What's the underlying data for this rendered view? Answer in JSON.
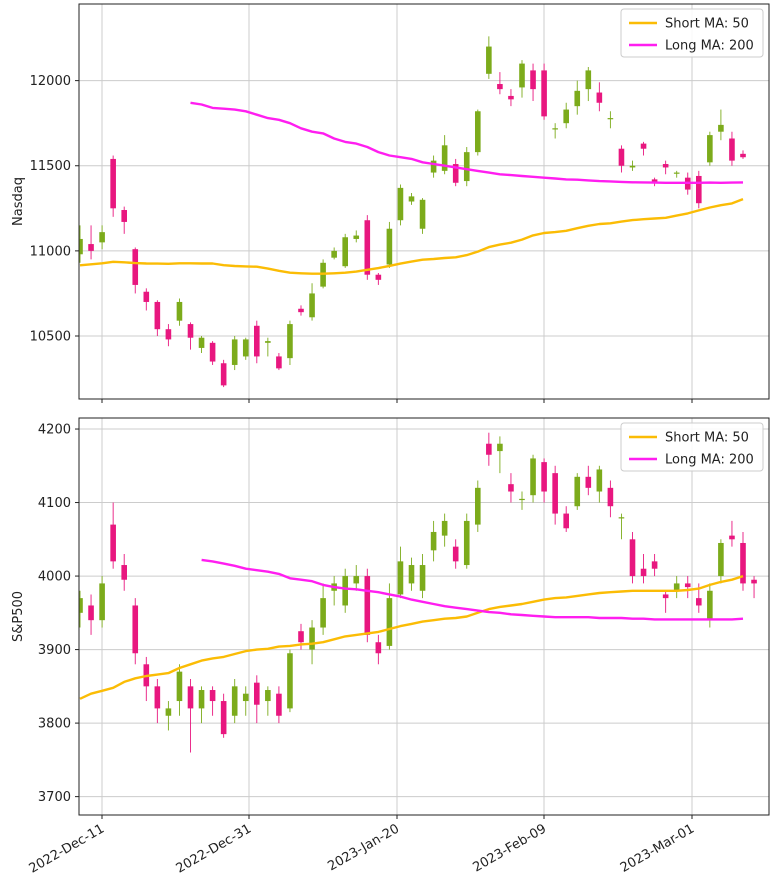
{
  "colors": {
    "up": "#7cab1b",
    "down": "#e8177f",
    "short_ma": "#fbbc05",
    "long_ma": "#ff1ef0",
    "grid": "#cccccc",
    "axis": "#222222"
  },
  "chart_data": [
    {
      "type": "candlestick",
      "ylabel": "Nasdaq",
      "ylim": [
        10130,
        12450
      ],
      "yticks": [
        10500,
        11000,
        11500,
        12000
      ],
      "grid": true,
      "legend_position": "top-right",
      "legend": [
        {
          "label": "Short MA: 50",
          "color": "short_ma"
        },
        {
          "label": "Long MA: 200",
          "color": "long_ma"
        }
      ],
      "candles": [
        [
          10980,
          11070,
          10930,
          11150
        ],
        [
          11040,
          11000,
          10950,
          11150
        ],
        [
          11050,
          11110,
          11010,
          11150
        ],
        [
          11540,
          11250,
          11200,
          11560
        ],
        [
          11240,
          11170,
          11100,
          11260
        ],
        [
          11010,
          10800,
          10750,
          11020
        ],
        [
          10760,
          10700,
          10650,
          10780
        ],
        [
          10700,
          10540,
          10500,
          10710
        ],
        [
          10540,
          10480,
          10440,
          10570
        ],
        [
          10590,
          10700,
          10560,
          10720
        ],
        [
          10570,
          10490,
          10420,
          10580
        ],
        [
          10430,
          10490,
          10400,
          10500
        ],
        [
          10460,
          10350,
          10330,
          10470
        ],
        [
          10340,
          10210,
          10200,
          10360
        ],
        [
          10330,
          10480,
          10300,
          10500
        ],
        [
          10380,
          10480,
          10360,
          10490
        ],
        [
          10560,
          10380,
          10340,
          10590
        ],
        [
          10460,
          10470,
          10380,
          10490
        ],
        [
          10380,
          10310,
          10300,
          10400
        ],
        [
          10370,
          10570,
          10330,
          10590
        ],
        [
          10660,
          10640,
          10620,
          10680
        ],
        [
          10610,
          10750,
          10590,
          10810
        ],
        [
          10790,
          10930,
          10780,
          10950
        ],
        [
          10960,
          11000,
          10950,
          11020
        ],
        [
          10910,
          11080,
          10900,
          11100
        ],
        [
          11070,
          11090,
          11050,
          11120
        ],
        [
          11180,
          10860,
          10830,
          11210
        ],
        [
          10860,
          10830,
          10800,
          10870
        ],
        [
          10920,
          11130,
          10900,
          11170
        ],
        [
          11180,
          11370,
          11150,
          11390
        ],
        [
          11290,
          11320,
          11270,
          11340
        ],
        [
          11130,
          11300,
          11100,
          11310
        ],
        [
          11460,
          11530,
          11430,
          11560
        ],
        [
          11470,
          11620,
          11450,
          11680
        ],
        [
          11510,
          11400,
          11380,
          11540
        ],
        [
          11410,
          11580,
          11380,
          11610
        ],
        [
          11580,
          11820,
          11560,
          11830
        ],
        [
          12040,
          12200,
          12010,
          12260
        ],
        [
          11980,
          11950,
          11920,
          12050
        ],
        [
          11910,
          11890,
          11850,
          11950
        ],
        [
          11960,
          12100,
          11900,
          12120
        ],
        [
          12060,
          11950,
          11880,
          12100
        ],
        [
          12060,
          11790,
          11770,
          12100
        ],
        [
          11720,
          11720,
          11660,
          11750
        ],
        [
          11750,
          11830,
          11720,
          11870
        ],
        [
          11850,
          11940,
          11800,
          12000
        ],
        [
          11950,
          12060,
          11880,
          12080
        ],
        [
          11930,
          11870,
          11820,
          11990
        ],
        [
          11780,
          11780,
          11720,
          11820
        ],
        [
          11600,
          11500,
          11460,
          11620
        ],
        [
          11490,
          11500,
          11470,
          11530
        ],
        [
          11630,
          11600,
          11560,
          11640
        ],
        [
          11420,
          11400,
          11380,
          11430
        ],
        [
          11510,
          11490,
          11450,
          11530
        ],
        [
          11460,
          11460,
          11430,
          11470
        ],
        [
          11430,
          11360,
          11330,
          11460
        ],
        [
          11440,
          11280,
          11250,
          11470
        ],
        [
          11520,
          11680,
          11500,
          11700
        ],
        [
          11700,
          11740,
          11650,
          11830
        ],
        [
          11660,
          11530,
          11500,
          11700
        ],
        [
          11570,
          11550,
          11540,
          11590
        ]
      ],
      "short_ma": [
        10915,
        10921,
        10927,
        10936,
        10933,
        10928,
        10926,
        10925,
        10924,
        10927,
        10927,
        10926,
        10926,
        10916,
        10911,
        10909,
        10907,
        10896,
        10883,
        10872,
        10868,
        10866,
        10866,
        10868,
        10872,
        10878,
        10889,
        10899,
        10912,
        10925,
        10937,
        10948,
        10952,
        10958,
        10962,
        10975,
        10996,
        11022,
        11037,
        11048,
        11066,
        11091,
        11105,
        11110,
        11118,
        11133,
        11147,
        11158,
        11162,
        11172,
        11181,
        11186,
        11190,
        11194,
        11207,
        11220,
        11238,
        11255,
        11268,
        11279,
        11304
      ],
      "long_ma": [
        null,
        null,
        null,
        null,
        null,
        null,
        null,
        null,
        null,
        null,
        11870,
        11860,
        11840,
        11835,
        11830,
        11820,
        11800,
        11780,
        11770,
        11750,
        11720,
        11700,
        11690,
        11660,
        11640,
        11630,
        11610,
        11580,
        11560,
        11550,
        11540,
        11520,
        11510,
        11500,
        11490,
        11480,
        11470,
        11460,
        11450,
        11445,
        11440,
        11435,
        11430,
        11425,
        11420,
        11418,
        11414,
        11410,
        11408,
        11405,
        11403,
        11402,
        11401,
        11400,
        11400,
        11400,
        11400,
        11401,
        11400,
        11401,
        11402
      ]
    },
    {
      "type": "candlestick",
      "ylabel": "S&P500",
      "ylim": [
        3675,
        4215
      ],
      "yticks": [
        3700,
        3800,
        3900,
        4000,
        4100,
        4200
      ],
      "grid": true,
      "legend_position": "top-right",
      "legend": [
        {
          "label": "Short MA: 50",
          "color": "short_ma"
        },
        {
          "label": "Long MA: 200",
          "color": "long_ma"
        }
      ],
      "candles": [
        [
          3950,
          3970,
          3930,
          3980
        ],
        [
          3960,
          3940,
          3920,
          3975
        ],
        [
          3940,
          3990,
          3930,
          4000
        ],
        [
          4070,
          4020,
          4010,
          4100
        ],
        [
          4015,
          3995,
          3980,
          4030
        ],
        [
          3960,
          3895,
          3880,
          3970
        ],
        [
          3880,
          3850,
          3830,
          3890
        ],
        [
          3850,
          3820,
          3800,
          3860
        ],
        [
          3810,
          3820,
          3790,
          3830
        ],
        [
          3830,
          3870,
          3810,
          3880
        ],
        [
          3850,
          3820,
          3760,
          3860
        ],
        [
          3820,
          3845,
          3800,
          3850
        ],
        [
          3845,
          3830,
          3810,
          3850
        ],
        [
          3830,
          3785,
          3780,
          3840
        ],
        [
          3810,
          3850,
          3800,
          3860
        ],
        [
          3830,
          3840,
          3810,
          3850
        ],
        [
          3855,
          3825,
          3800,
          3865
        ],
        [
          3830,
          3845,
          3810,
          3850
        ],
        [
          3840,
          3810,
          3800,
          3850
        ],
        [
          3820,
          3895,
          3815,
          3900
        ],
        [
          3925,
          3910,
          3900,
          3935
        ],
        [
          3900,
          3930,
          3880,
          3940
        ],
        [
          3930,
          3970,
          3920,
          3990
        ],
        [
          3980,
          3990,
          3960,
          4000
        ],
        [
          3960,
          4000,
          3950,
          4010
        ],
        [
          3990,
          4000,
          3980,
          4015
        ],
        [
          4000,
          3920,
          3910,
          4010
        ],
        [
          3910,
          3895,
          3880,
          3920
        ],
        [
          3905,
          3970,
          3900,
          3990
        ],
        [
          3975,
          4020,
          3970,
          4040
        ],
        [
          3990,
          4015,
          3980,
          4025
        ],
        [
          3980,
          4015,
          3970,
          4030
        ],
        [
          4035,
          4060,
          4020,
          4075
        ],
        [
          4055,
          4075,
          4040,
          4085
        ],
        [
          4040,
          4020,
          4010,
          4050
        ],
        [
          4015,
          4075,
          4010,
          4085
        ],
        [
          4070,
          4120,
          4060,
          4130
        ],
        [
          4180,
          4165,
          4150,
          4195
        ],
        [
          4170,
          4180,
          4140,
          4190
        ],
        [
          4125,
          4115,
          4100,
          4140
        ],
        [
          4105,
          4105,
          4090,
          4115
        ],
        [
          4110,
          4160,
          4100,
          4165
        ],
        [
          4155,
          4115,
          4100,
          4160
        ],
        [
          4140,
          4085,
          4070,
          4150
        ],
        [
          4085,
          4065,
          4060,
          4095
        ],
        [
          4095,
          4135,
          4090,
          4140
        ],
        [
          4135,
          4120,
          4110,
          4150
        ],
        [
          4115,
          4145,
          4100,
          4150
        ],
        [
          4120,
          4095,
          4080,
          4130
        ],
        [
          4080,
          4080,
          4050,
          4085
        ],
        [
          4050,
          4000,
          3990,
          4060
        ],
        [
          4010,
          4000,
          3990,
          4030
        ],
        [
          4020,
          4010,
          4000,
          4030
        ],
        [
          3975,
          3970,
          3950,
          3980
        ],
        [
          3980,
          3990,
          3970,
          4000
        ],
        [
          3990,
          3985,
          3970,
          4000
        ],
        [
          3970,
          3960,
          3950,
          3990
        ],
        [
          3940,
          3980,
          3930,
          3990
        ],
        [
          4000,
          4045,
          3990,
          4050
        ],
        [
          4055,
          4050,
          4040,
          4075
        ],
        [
          4045,
          3990,
          3980,
          4060
        ],
        [
          3995,
          3990,
          3970,
          4000
        ]
      ],
      "short_ma": [
        3833,
        3840,
        3844,
        3848,
        3856,
        3861,
        3864,
        3866,
        3868,
        3875,
        3880,
        3885,
        3888,
        3890,
        3894,
        3898,
        3900,
        3901,
        3904,
        3905,
        3907,
        3908,
        3910,
        3914,
        3918,
        3920,
        3922,
        3924,
        3928,
        3932,
        3935,
        3938,
        3940,
        3942,
        3943,
        3945,
        3950,
        3955,
        3958,
        3960,
        3962,
        3965,
        3968,
        3970,
        3971,
        3973,
        3975,
        3977,
        3978,
        3979,
        3980,
        3980,
        3980,
        3980,
        3980,
        3981,
        3983,
        3988,
        3992,
        3995,
        4000
      ],
      "long_ma": [
        null,
        null,
        null,
        null,
        null,
        null,
        null,
        null,
        null,
        null,
        null,
        4022,
        4020,
        4017,
        4014,
        4010,
        4008,
        4006,
        4003,
        3997,
        3995,
        3993,
        3988,
        3985,
        3983,
        3982,
        3980,
        3978,
        3975,
        3972,
        3968,
        3965,
        3962,
        3959,
        3957,
        3955,
        3953,
        3951,
        3950,
        3948,
        3947,
        3946,
        3945,
        3944,
        3944,
        3944,
        3944,
        3943,
        3943,
        3943,
        3942,
        3942,
        3941,
        3941,
        3941,
        3941,
        3941,
        3941,
        3941,
        3941,
        3942
      ]
    }
  ],
  "x_axis": {
    "tick_labels": [
      "2022-Dec-11",
      "2022-Dec-31",
      "2023-Jan-20",
      "2023-Feb-09",
      "2023-Mar-01"
    ],
    "tick_rotation_deg": 30
  }
}
